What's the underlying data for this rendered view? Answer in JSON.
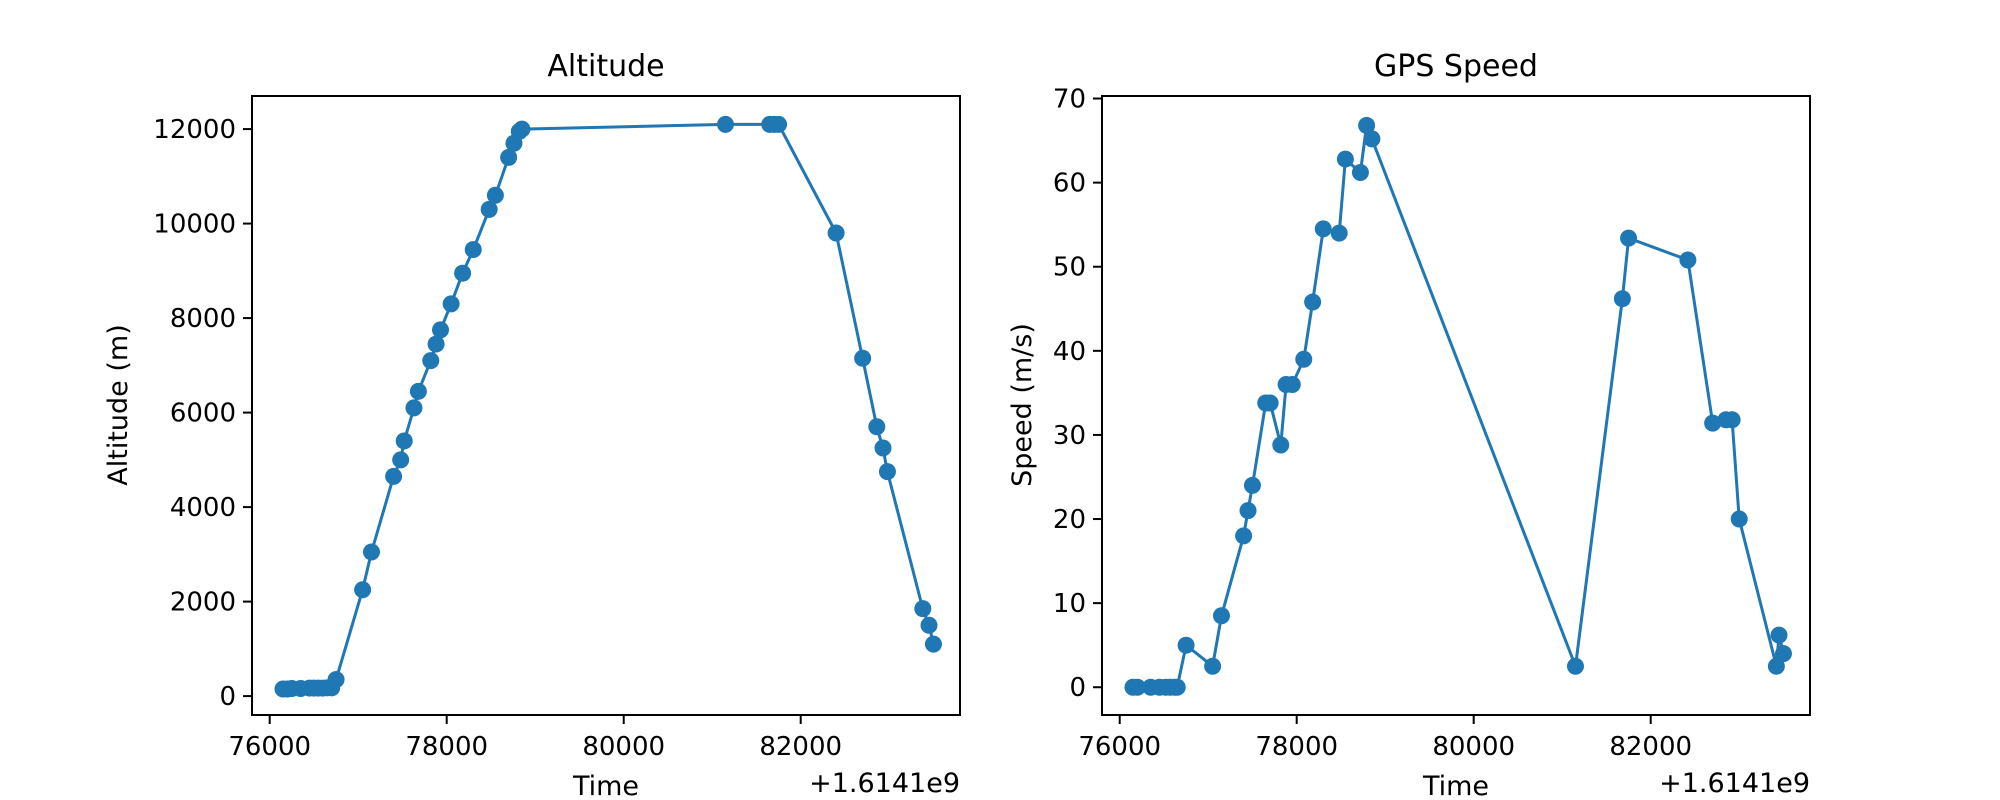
{
  "chart_data": [
    {
      "type": "line",
      "title": "Altitude",
      "xlabel": "Time",
      "ylabel": "Altitude (m)",
      "x_offset_label": "+1.6141e9",
      "xlim": [
        75800,
        83800
      ],
      "ylim": [
        -400,
        12700
      ],
      "xticks": [
        76000,
        78000,
        80000,
        82000
      ],
      "xtick_labels": [
        "76000",
        "78000",
        "80000",
        "82000"
      ],
      "yticks": [
        0,
        2000,
        4000,
        6000,
        8000,
        10000,
        12000
      ],
      "ytick_labels": [
        "0",
        "2000",
        "4000",
        "6000",
        "8000",
        "10000",
        "12000"
      ],
      "grid": false,
      "series": [
        {
          "color": "#1f77b4",
          "marker": "circle",
          "x": [
            76150,
            76200,
            76250,
            76350,
            76450,
            76500,
            76550,
            76600,
            76650,
            76700,
            76750,
            77050,
            77150,
            77400,
            77480,
            77520,
            77630,
            77680,
            77820,
            77880,
            77930,
            78050,
            78180,
            78300,
            78480,
            78550,
            78700,
            78760,
            78820,
            78850,
            81150,
            81650,
            81700,
            81750,
            82400,
            82700,
            82860,
            82930,
            82980,
            83380,
            83450,
            83500
          ],
          "y": [
            150,
            150,
            160,
            160,
            170,
            170,
            170,
            170,
            175,
            175,
            350,
            2250,
            3050,
            4650,
            5000,
            5400,
            6100,
            6450,
            7100,
            7450,
            7750,
            8300,
            8950,
            9450,
            10300,
            10600,
            11400,
            11700,
            11950,
            12000,
            12100,
            12100,
            12100,
            12100,
            9800,
            7150,
            5700,
            5250,
            4750,
            1850,
            1500,
            1100
          ]
        }
      ]
    },
    {
      "type": "line",
      "title": "GPS Speed",
      "xlabel": "Time",
      "ylabel": "Speed (m/s)",
      "x_offset_label": "+1.6141e9",
      "xlim": [
        75800,
        83800
      ],
      "ylim": [
        -3.3,
        70.3
      ],
      "xticks": [
        76000,
        78000,
        80000,
        82000
      ],
      "xtick_labels": [
        "76000",
        "78000",
        "80000",
        "82000"
      ],
      "yticks": [
        0,
        10,
        20,
        30,
        40,
        50,
        60,
        70
      ],
      "ytick_labels": [
        "0",
        "10",
        "20",
        "30",
        "40",
        "50",
        "60",
        "70"
      ],
      "grid": false,
      "series": [
        {
          "color": "#1f77b4",
          "marker": "circle",
          "x": [
            76150,
            76200,
            76350,
            76450,
            76520,
            76570,
            76620,
            76650,
            76750,
            77050,
            77150,
            77400,
            77450,
            77500,
            77650,
            77700,
            77820,
            77880,
            77950,
            78080,
            78180,
            78300,
            78480,
            78550,
            78720,
            78790,
            78850,
            81150,
            81680,
            81750,
            82420,
            82700,
            82850,
            82920,
            83000,
            83420,
            83450,
            83500
          ],
          "y": [
            0,
            0,
            0,
            0,
            0,
            0,
            0,
            0,
            5,
            2.5,
            8.5,
            18,
            21,
            24,
            33.8,
            33.8,
            28.8,
            36,
            36,
            39,
            45.8,
            54.5,
            54,
            62.8,
            61.2,
            66.8,
            65.2,
            2.5,
            46.2,
            53.4,
            50.8,
            31.4,
            31.8,
            31.8,
            20,
            2.5,
            6.2,
            4
          ]
        }
      ]
    }
  ]
}
